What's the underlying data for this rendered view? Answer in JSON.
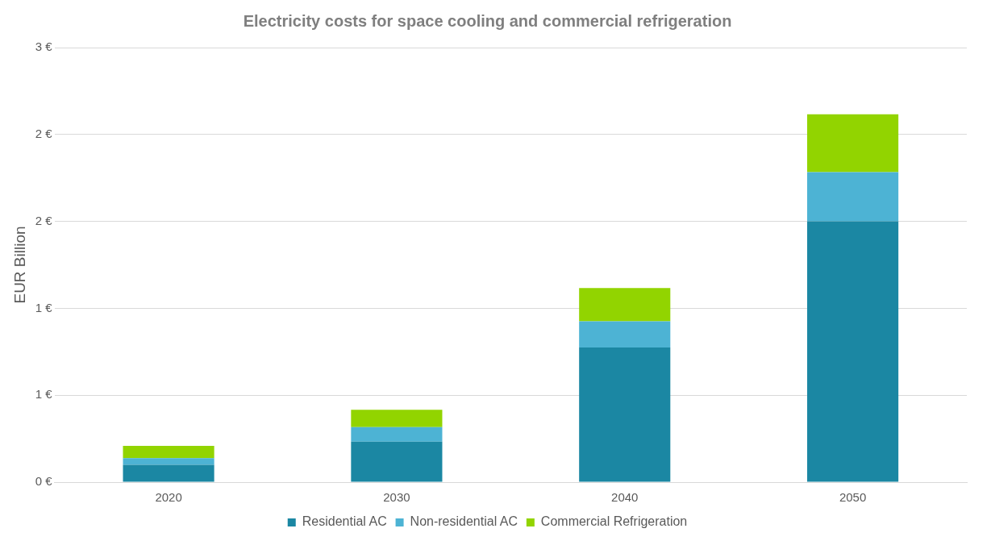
{
  "chart_data": {
    "type": "bar",
    "title": "Electricity costs for space cooling and commercial refrigeration",
    "ylabel": "EUR Billion",
    "categories": [
      "2020",
      "2030",
      "2040",
      "2050"
    ],
    "stacked": true,
    "series": [
      {
        "name": "Residential AC",
        "color": "#1b87a3",
        "values": [
          0.12,
          0.28,
          0.93,
          1.8
        ]
      },
      {
        "name": "Non-residential AC",
        "color": "#4db3d4",
        "values": [
          0.045,
          0.1,
          0.18,
          0.34
        ]
      },
      {
        "name": "Commercial Refrigeration",
        "color": "#92d400",
        "values": [
          0.085,
          0.12,
          0.23,
          0.4
        ]
      }
    ],
    "ylim": [
      0,
      3
    ],
    "yticks": [
      {
        "value": 0,
        "label": "0 €"
      },
      {
        "value": 0.6,
        "label": "1 €"
      },
      {
        "value": 1.2,
        "label": "1 €"
      },
      {
        "value": 1.8,
        "label": "2 €"
      },
      {
        "value": 2.4,
        "label": "2 €"
      },
      {
        "value": 3,
        "label": "3 €"
      }
    ],
    "grid": "y",
    "legend": "bottom"
  }
}
